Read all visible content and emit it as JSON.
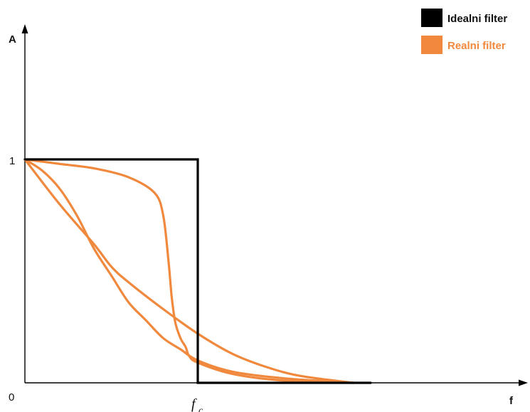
{
  "chart_data": {
    "type": "line",
    "title": "",
    "xlabel": "f",
    "ylabel": "A",
    "origin_label": "0",
    "y_tick_label": "1",
    "fc_label_main": "f",
    "fc_label_sub": "c",
    "xlim": [
      0,
      2.0
    ],
    "ylim": [
      0,
      1.0
    ],
    "legend": [
      {
        "label": "Idealni filter",
        "color": "#000000"
      },
      {
        "label": "Realni filter",
        "color": "#F0893D"
      }
    ],
    "series": [
      {
        "name": "Idealni filter",
        "color": "#000000",
        "x": [
          0,
          1.0,
          1.0,
          2.0
        ],
        "y": [
          1,
          1,
          0,
          0
        ]
      },
      {
        "name": "Realni filter",
        "color": "#F0893D",
        "x": [
          0,
          0.2,
          0.4,
          0.6,
          0.75,
          0.8,
          0.83,
          0.85,
          0.87,
          0.9,
          0.93,
          0.95,
          1.0,
          1.2,
          1.5,
          1.9
        ],
        "y": [
          1,
          0.98,
          0.96,
          0.92,
          0.85,
          0.75,
          0.55,
          0.38,
          0.27,
          0.2,
          0.16,
          0.12,
          0.09,
          0.04,
          0.01,
          0
        ]
      },
      {
        "name": "Realni filter",
        "color": "#F0893D",
        "x": [
          0,
          0.1,
          0.2,
          0.3,
          0.4,
          0.5,
          0.6,
          0.7,
          0.8,
          0.9,
          1.0,
          1.2,
          1.5,
          1.9
        ],
        "y": [
          1,
          0.95,
          0.87,
          0.75,
          0.6,
          0.48,
          0.36,
          0.28,
          0.2,
          0.15,
          0.1,
          0.05,
          0.02,
          0
        ]
      },
      {
        "name": "Realni filter",
        "color": "#F0893D",
        "x": [
          0,
          0.2,
          0.4,
          0.5,
          0.6,
          0.8,
          1.0,
          1.2,
          1.4,
          1.6,
          1.9
        ],
        "y": [
          1,
          0.8,
          0.62,
          0.52,
          0.45,
          0.33,
          0.22,
          0.13,
          0.07,
          0.03,
          0
        ]
      }
    ]
  }
}
